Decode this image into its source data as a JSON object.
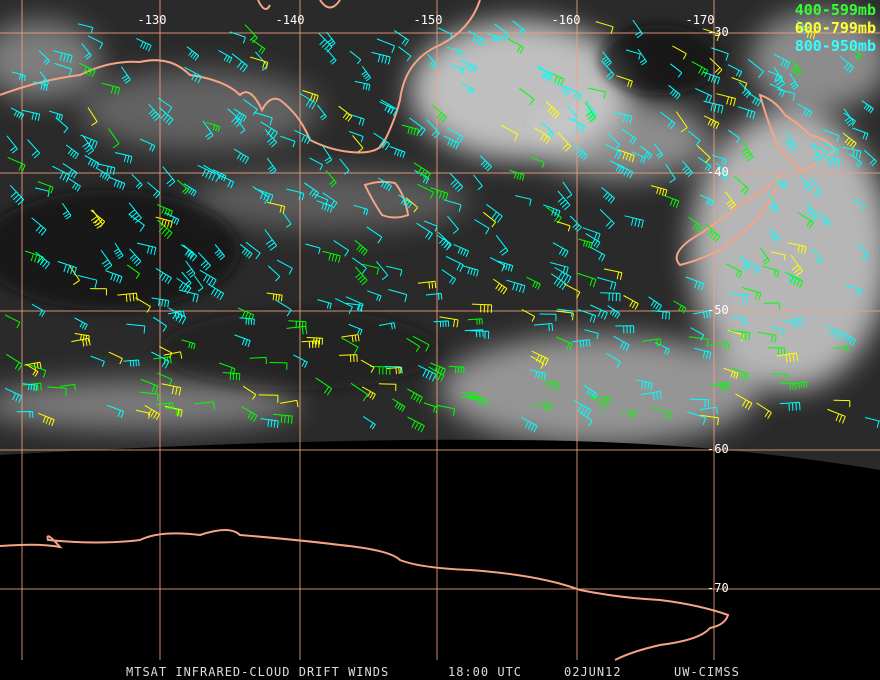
{
  "map": {
    "longitude_labels": [
      "-130",
      "-140",
      "-150",
      "-160",
      "-170"
    ],
    "latitude_labels": [
      "-30",
      "-40",
      "-50",
      "-60",
      "-70"
    ],
    "legend": [
      "400-599mb",
      "600-799mb",
      "800-950mb"
    ],
    "footer": {
      "product": "MTSAT INFRARED-CLOUD DRIFT WINDS",
      "time": "18:00 UTC",
      "date": "02JUN12",
      "source": "UW-CIMSS"
    }
  }
}
